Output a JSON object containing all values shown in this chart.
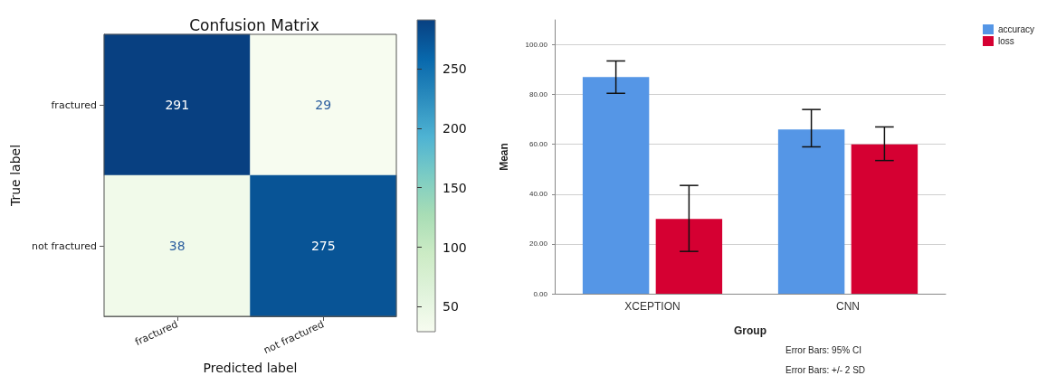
{
  "chart_data": [
    {
      "type": "heatmap",
      "title": "Confusion Matrix",
      "xlabel": "Predicted label",
      "ylabel": "True label",
      "categories": [
        "fractured",
        "not fractured"
      ],
      "y_categories": [
        "fractured",
        "not fractured"
      ],
      "cells": [
        [
          291,
          29
        ],
        [
          38,
          275
        ]
      ],
      "clim": [
        29,
        291
      ],
      "cticks": [
        50,
        100,
        150,
        200,
        250
      ],
      "data_labels": true
    },
    {
      "type": "bar",
      "xlabel": "Group",
      "ylabel": "Mean",
      "categories": [
        "XCEPTION",
        "CNN"
      ],
      "series": [
        {
          "name": "accuracy",
          "color": "#5596e6",
          "values": [
            87,
            66
          ],
          "errors": [
            [
              80.5,
              93.5
            ],
            [
              59,
              74
            ]
          ]
        },
        {
          "name": "loss",
          "color": "#d50032",
          "values": [
            30,
            60
          ],
          "errors": [
            [
              17,
              43.5
            ],
            [
              53.5,
              67
            ]
          ]
        }
      ],
      "ylim": [
        0,
        110
      ],
      "yticks": [
        {
          "value": 0,
          "label": "0.00"
        },
        {
          "value": 20,
          "label": "20.00"
        },
        {
          "value": 40,
          "label": "40.00"
        },
        {
          "value": 60,
          "label": "60.00"
        },
        {
          "value": 80,
          "label": "80.00"
        },
        {
          "value": 100,
          "label": "100.00"
        }
      ],
      "grid": "y",
      "legend": "top right",
      "annotations": [
        "Error Bars: 95% CI",
        "Error Bars: +/- 2 SD"
      ]
    }
  ]
}
